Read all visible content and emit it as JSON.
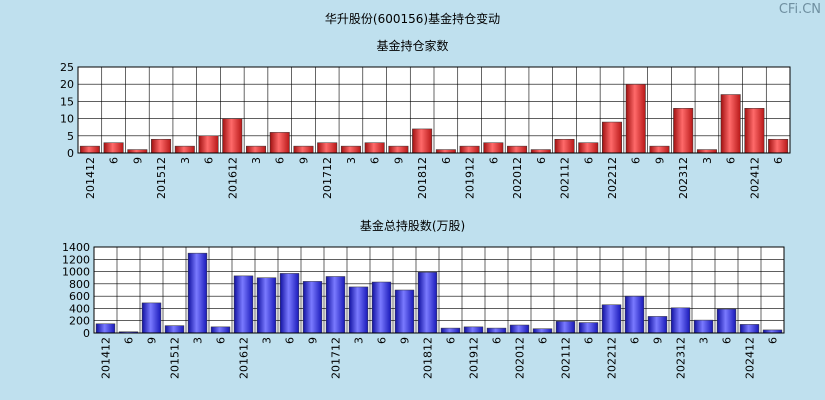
{
  "title": "华升股份(600156)基金持仓变动",
  "watermark": "CFi.CN",
  "chart_data": [
    {
      "type": "bar",
      "title": "基金持仓家数",
      "categories": [
        "201412",
        "6",
        "9",
        "201512",
        "3",
        "6",
        "201612",
        "3",
        "6",
        "9",
        "201712",
        "3",
        "6",
        "9",
        "201812",
        "6",
        "201912",
        "6",
        "202012",
        "6",
        "202112",
        "6",
        "202212",
        "6",
        "9",
        "202312",
        "3",
        "6",
        "202412",
        "6"
      ],
      "x_tick_labels": [
        "201412",
        "6",
        "9",
        "201512",
        "3",
        "6",
        "201612",
        "3",
        "6",
        "9",
        "201712",
        "3",
        "6",
        "9",
        "201812",
        "6",
        "201912",
        "6",
        "202012",
        "6",
        "202112",
        "6",
        "202212",
        "6",
        "9",
        "202312",
        "3",
        "6",
        "202412",
        "6"
      ],
      "values": [
        2,
        3,
        1,
        4,
        2,
        5,
        10,
        2,
        6,
        2,
        3,
        2,
        3,
        2,
        7,
        1,
        2,
        3,
        2,
        1,
        4,
        3,
        9,
        20,
        2,
        13,
        1,
        17,
        13,
        4
      ],
      "ylim": [
        0,
        25
      ],
      "y_ticks": [
        0,
        5,
        10,
        15,
        20,
        25
      ],
      "grid": true,
      "bar_color": "#e23a3a"
    },
    {
      "type": "bar",
      "title": "基金总持股数(万股)",
      "categories": [
        "201412",
        "6",
        "9",
        "201512",
        "3",
        "6",
        "201612",
        "3",
        "6",
        "9",
        "201712",
        "3",
        "6",
        "9",
        "201812",
        "6",
        "201912",
        "6",
        "202012",
        "6",
        "202112",
        "6",
        "202212",
        "6",
        "9",
        "202312",
        "3",
        "6",
        "202412",
        "6"
      ],
      "x_tick_labels": [
        "201412",
        "6",
        "9",
        "201512",
        "3",
        "6",
        "201612",
        "3",
        "6",
        "9",
        "201712",
        "3",
        "6",
        "9",
        "201812",
        "6",
        "201912",
        "6",
        "202012",
        "6",
        "202112",
        "6",
        "202212",
        "6",
        "9",
        "202312",
        "3",
        "6",
        "202412",
        "6"
      ],
      "values": [
        150,
        20,
        490,
        120,
        1300,
        100,
        930,
        900,
        970,
        840,
        920,
        750,
        830,
        700,
        990,
        80,
        100,
        80,
        130,
        70,
        190,
        170,
        460,
        600,
        270,
        410,
        210,
        390,
        140,
        50
      ],
      "ylim": [
        0,
        1400
      ],
      "y_ticks": [
        0,
        200,
        400,
        600,
        800,
        1000,
        1200,
        1400
      ],
      "grid": true,
      "bar_color": "#3a3ae6"
    }
  ]
}
